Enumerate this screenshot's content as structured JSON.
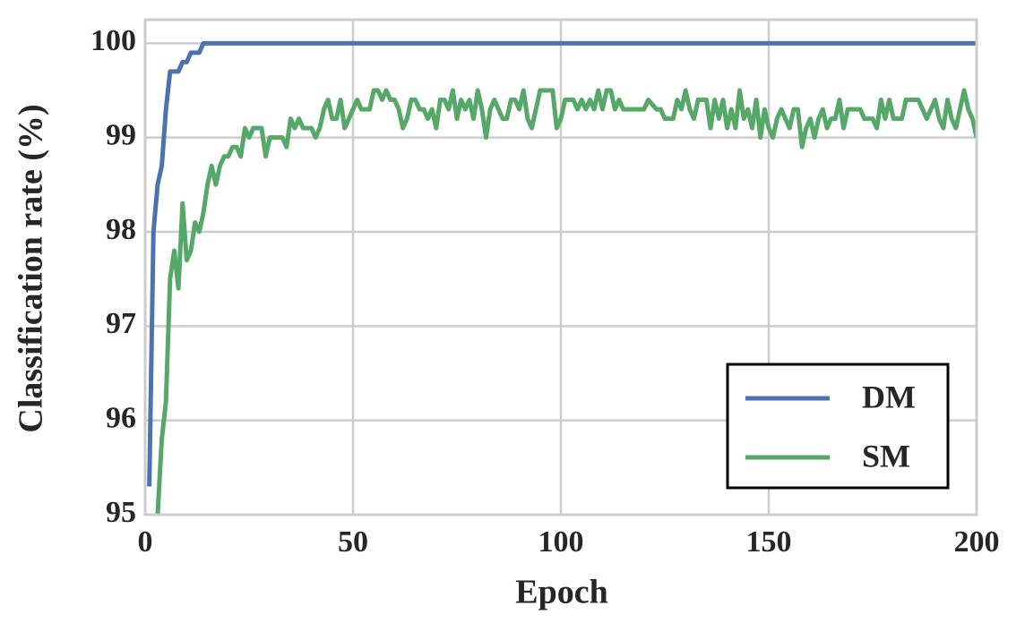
{
  "chart_data": {
    "type": "line",
    "x_label": "Epoch",
    "y_label": "Classification rate (%)",
    "xlim": [
      0,
      200
    ],
    "xticks": [
      0,
      50,
      100,
      150,
      200
    ],
    "ylim": [
      95,
      100.25
    ],
    "yticks": [
      95,
      96,
      97,
      98,
      99,
      100
    ],
    "grid": true,
    "legend": "lower right",
    "series": [
      {
        "name": "DM",
        "color": "#4c72b0",
        "x": [
          1,
          2,
          3,
          4,
          5,
          6,
          8,
          9,
          10,
          11,
          13,
          14,
          200
        ],
        "values": [
          95.3,
          98.0,
          98.5,
          98.7,
          99.3,
          99.7,
          99.7,
          99.8,
          99.8,
          99.9,
          99.9,
          100,
          100
        ]
      },
      {
        "name": "SM",
        "color": "#55a868",
        "x": [
          3,
          4,
          5,
          6,
          7,
          8,
          9,
          10,
          11,
          12,
          13,
          14,
          15,
          16,
          17,
          18,
          19,
          20,
          21,
          22,
          23,
          24,
          25,
          26,
          27,
          28,
          29,
          30,
          31,
          32,
          33,
          34,
          35,
          36,
          37,
          38,
          39,
          40,
          41,
          42,
          43,
          44,
          45,
          46,
          47,
          48,
          49,
          50,
          51,
          52,
          53,
          54,
          55,
          56,
          57,
          58,
          59,
          60,
          61,
          62,
          63,
          64,
          65,
          66,
          67,
          68,
          69,
          70,
          71,
          72,
          73,
          74,
          75,
          76,
          77,
          78,
          79,
          80,
          81,
          82,
          83,
          84,
          85,
          86,
          87,
          88,
          89,
          90,
          91,
          92,
          93,
          94,
          95,
          96,
          97,
          98,
          99,
          100,
          101,
          103,
          104,
          105,
          106,
          107,
          108,
          109,
          110,
          111,
          112,
          113,
          114,
          115,
          117,
          120,
          121,
          123,
          124,
          125,
          127,
          128,
          129,
          130,
          131,
          132,
          133,
          135,
          136,
          137,
          138,
          139,
          140,
          141,
          142,
          143,
          144,
          145,
          146,
          147,
          148,
          149,
          150,
          151,
          152,
          153,
          154,
          155,
          156,
          157,
          158,
          159,
          160,
          161,
          162,
          163,
          164,
          165,
          166,
          167,
          168,
          169,
          172,
          173,
          175,
          176,
          177,
          178,
          179,
          180,
          182,
          183,
          186,
          187,
          188,
          189,
          190,
          191,
          192,
          193,
          194,
          195,
          196,
          197,
          198,
          199,
          200
        ],
        "values": [
          95.0,
          95.8,
          96.2,
          97.5,
          97.8,
          97.4,
          98.3,
          97.7,
          97.8,
          98.1,
          98.0,
          98.2,
          98.5,
          98.7,
          98.5,
          98.7,
          98.8,
          98.8,
          98.9,
          98.9,
          98.8,
          99.1,
          99.0,
          99.1,
          99.1,
          99.1,
          98.8,
          99.0,
          99.0,
          99.0,
          99.0,
          98.9,
          99.2,
          99.1,
          99.2,
          99.1,
          99.1,
          99.1,
          99.0,
          99.1,
          99.3,
          99.4,
          99.2,
          99.2,
          99.4,
          99.1,
          99.2,
          99.3,
          99.4,
          99.3,
          99.3,
          99.3,
          99.5,
          99.5,
          99.4,
          99.5,
          99.4,
          99.4,
          99.3,
          99.1,
          99.2,
          99.4,
          99.4,
          99.3,
          99.3,
          99.2,
          99.3,
          99.1,
          99.4,
          99.4,
          99.3,
          99.5,
          99.2,
          99.4,
          99.3,
          99.4,
          99.2,
          99.5,
          99.3,
          99.0,
          99.3,
          99.4,
          99.3,
          99.2,
          99.2,
          99.4,
          99.4,
          99.3,
          99.5,
          99.2,
          99.1,
          99.3,
          99.5,
          99.5,
          99.5,
          99.5,
          99.1,
          99.2,
          99.4,
          99.4,
          99.3,
          99.4,
          99.3,
          99.4,
          99.3,
          99.5,
          99.3,
          99.5,
          99.5,
          99.3,
          99.4,
          99.3,
          99.3,
          99.3,
          99.4,
          99.3,
          99.3,
          99.2,
          99.2,
          99.4,
          99.3,
          99.5,
          99.3,
          99.2,
          99.4,
          99.4,
          99.1,
          99.4,
          99.2,
          99.4,
          99.1,
          99.3,
          99.1,
          99.5,
          99.2,
          99.3,
          99.1,
          99.4,
          99.0,
          99.3,
          99.1,
          99.0,
          99.2,
          99.3,
          99.2,
          99.1,
          99.3,
          99.3,
          98.9,
          99.1,
          99.2,
          99.0,
          99.2,
          99.3,
          99.1,
          99.2,
          99.2,
          99.4,
          99.1,
          99.3,
          99.3,
          99.2,
          99.2,
          99.1,
          99.4,
          99.2,
          99.4,
          99.2,
          99.2,
          99.4,
          99.4,
          99.3,
          99.2,
          99.3,
          99.4,
          99.2,
          99.1,
          99.4,
          99.2,
          99.1,
          99.3,
          99.5,
          99.3,
          99.2,
          99.0
        ]
      }
    ]
  }
}
